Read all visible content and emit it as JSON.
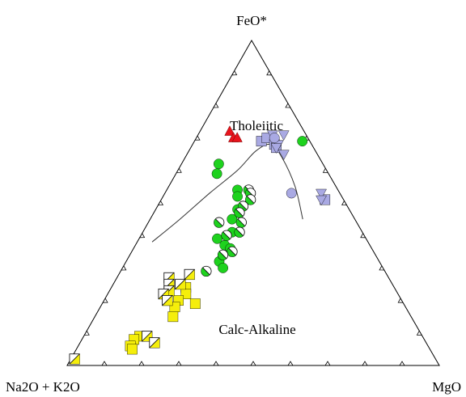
{
  "chart_data": {
    "type": "scatter",
    "subtype": "ternary AFM diagram",
    "vertices": {
      "top": "FeO*",
      "bottom_left": "Na2O + K2O",
      "bottom_right": "MgO"
    },
    "field_labels": {
      "upper": "Tholeiitic",
      "lower": "Calc-Alkaline"
    },
    "tick_step_percent": 10,
    "boundary_curve_note": "Tholeiitic / calc-alkaline dividing line",
    "boundary_curve": [
      {
        "feo": 38,
        "alk": 58,
        "mgo": 4
      },
      {
        "feo": 45,
        "alk": 47,
        "mgo": 8
      },
      {
        "feo": 53,
        "alk": 35,
        "mgo": 12
      },
      {
        "feo": 60,
        "alk": 24,
        "mgo": 16
      },
      {
        "feo": 66,
        "alk": 16,
        "mgo": 18
      },
      {
        "feo": 68,
        "alk": 11,
        "mgo": 21
      },
      {
        "feo": 64,
        "alk": 10,
        "mgo": 26
      },
      {
        "feo": 55,
        "alk": 11,
        "mgo": 34
      },
      {
        "feo": 45,
        "alk": 14,
        "mgo": 41
      }
    ],
    "series": [
      {
        "marker": "triangle-up",
        "color": "#e8141c",
        "points": [
          {
            "feo": 72,
            "alk": 20,
            "mgo": 8
          },
          {
            "feo": 70,
            "alk": 20,
            "mgo": 10
          },
          {
            "feo": 70,
            "alk": 19,
            "mgo": 11
          }
        ]
      },
      {
        "marker": "square",
        "color": "#a9a9e3",
        "points": [
          {
            "feo": 69,
            "alk": 13,
            "mgo": 18
          },
          {
            "feo": 70,
            "alk": 11,
            "mgo": 19
          },
          {
            "feo": 68,
            "alk": 10,
            "mgo": 22
          },
          {
            "feo": 67,
            "alk": 10,
            "mgo": 23
          },
          {
            "feo": 51,
            "alk": 5,
            "mgo": 44
          }
        ]
      },
      {
        "marker": "triangle-down",
        "color": "#a9a9e3",
        "points": [
          {
            "feo": 71,
            "alk": 9,
            "mgo": 20
          },
          {
            "feo": 68,
            "alk": 9,
            "mgo": 23
          },
          {
            "feo": 67,
            "alk": 10,
            "mgo": 23
          },
          {
            "feo": 71,
            "alk": 6,
            "mgo": 23
          },
          {
            "feo": 65,
            "alk": 9,
            "mgo": 26
          },
          {
            "feo": 53,
            "alk": 5,
            "mgo": 42
          },
          {
            "feo": 51,
            "alk": 6,
            "mgo": 43
          }
        ]
      },
      {
        "marker": "circle",
        "color": "#a9a9e3",
        "points": [
          {
            "feo": 70,
            "alk": 9,
            "mgo": 21
          },
          {
            "feo": 53,
            "alk": 13,
            "mgo": 34
          }
        ]
      },
      {
        "marker": "circle",
        "color": "#1ed21e",
        "points": [
          {
            "feo": 69,
            "alk": 2,
            "mgo": 29
          },
          {
            "feo": 62,
            "alk": 28,
            "mgo": 10
          },
          {
            "feo": 59,
            "alk": 30,
            "mgo": 11
          },
          {
            "feo": 54,
            "alk": 27,
            "mgo": 19
          },
          {
            "feo": 52,
            "alk": 28,
            "mgo": 20
          },
          {
            "feo": 48,
            "alk": 30,
            "mgo": 22
          },
          {
            "feo": 45,
            "alk": 33,
            "mgo": 22
          },
          {
            "feo": 41,
            "alk": 35,
            "mgo": 24
          },
          {
            "feo": 37,
            "alk": 39,
            "mgo": 24
          },
          {
            "feo": 39,
            "alk": 40,
            "mgo": 21
          },
          {
            "feo": 36,
            "alk": 38,
            "mgo": 26
          },
          {
            "feo": 32,
            "alk": 43,
            "mgo": 25
          },
          {
            "feo": 30,
            "alk": 43,
            "mgo": 27
          }
        ]
      },
      {
        "marker": "circle-half",
        "color": "#1ed21e",
        "points": [
          {
            "feo": 54,
            "alk": 24,
            "mgo": 22
          },
          {
            "feo": 53,
            "alk": 24,
            "mgo": 23
          },
          {
            "feo": 51,
            "alk": 25,
            "mgo": 24
          },
          {
            "feo": 49,
            "alk": 28,
            "mgo": 23
          },
          {
            "feo": 47,
            "alk": 30,
            "mgo": 23
          },
          {
            "feo": 44,
            "alk": 31,
            "mgo": 25
          },
          {
            "feo": 44,
            "alk": 37,
            "mgo": 19
          },
          {
            "feo": 41,
            "alk": 33,
            "mgo": 26
          },
          {
            "feo": 40,
            "alk": 37,
            "mgo": 23
          },
          {
            "feo": 35,
            "alk": 38,
            "mgo": 27
          },
          {
            "feo": 34,
            "alk": 41,
            "mgo": 25
          },
          {
            "feo": 29,
            "alk": 48,
            "mgo": 23
          }
        ]
      },
      {
        "marker": "square",
        "color": "#f5ee0b",
        "points": [
          {
            "feo": 24,
            "alk": 56,
            "mgo": 20
          },
          {
            "feo": 22,
            "alk": 57,
            "mgo": 21
          },
          {
            "feo": 19,
            "alk": 56,
            "mgo": 25
          },
          {
            "feo": 20,
            "alk": 60,
            "mgo": 20
          },
          {
            "feo": 18,
            "alk": 62,
            "mgo": 20
          },
          {
            "feo": 15,
            "alk": 64,
            "mgo": 21
          },
          {
            "feo": 9,
            "alk": 76,
            "mgo": 15
          },
          {
            "feo": 8,
            "alk": 78,
            "mgo": 14
          },
          {
            "feo": 6,
            "alk": 80,
            "mgo": 14
          },
          {
            "feo": 5,
            "alk": 80,
            "mgo": 15
          }
        ]
      },
      {
        "marker": "square-half",
        "color": "#f5ee0b",
        "points": [
          {
            "feo": 28,
            "alk": 53,
            "mgo": 19
          },
          {
            "feo": 27,
            "alk": 59,
            "mgo": 14
          },
          {
            "feo": 25,
            "alk": 57,
            "mgo": 18
          },
          {
            "feo": 25,
            "alk": 60,
            "mgo": 15
          },
          {
            "feo": 23,
            "alk": 61,
            "mgo": 16
          },
          {
            "feo": 22,
            "alk": 63,
            "mgo": 15
          },
          {
            "feo": 20,
            "alk": 63,
            "mgo": 17
          },
          {
            "feo": 9,
            "alk": 74,
            "mgo": 17
          },
          {
            "feo": 7,
            "alk": 73,
            "mgo": 20
          },
          {
            "feo": 2,
            "alk": 97,
            "mgo": 1
          }
        ]
      }
    ]
  }
}
